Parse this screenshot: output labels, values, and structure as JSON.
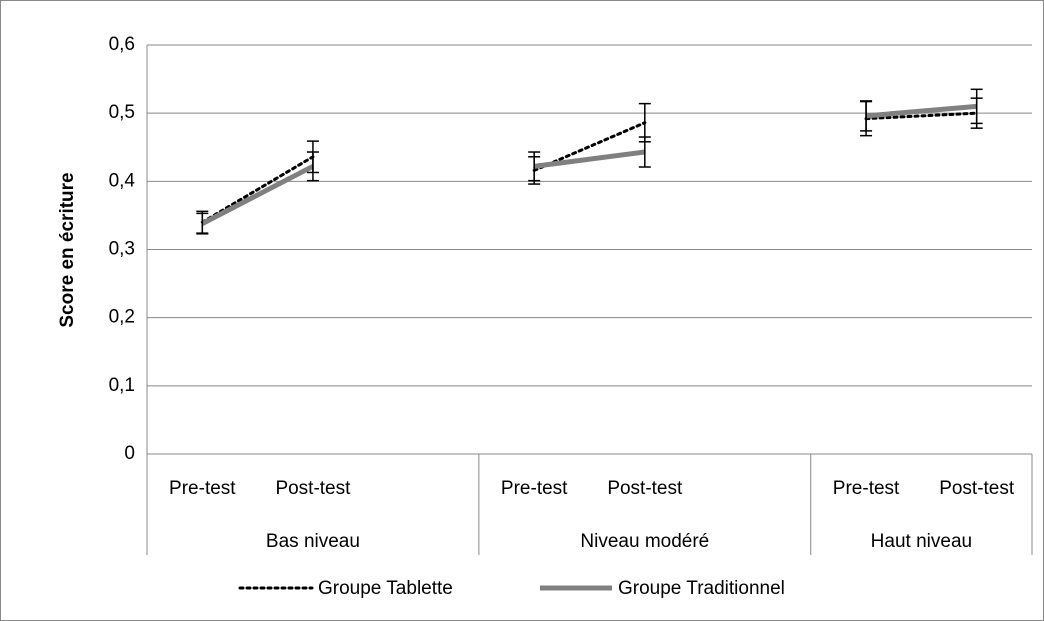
{
  "chart_data": {
    "type": "line",
    "y_label": "Score en écriture",
    "groups": [
      {
        "name": "Bas niveau",
        "categories": [
          "Pre-test",
          "Post-test",
          null
        ]
      },
      {
        "name": "Niveau modéré",
        "categories": [
          "Pre-test",
          "Post-test",
          null
        ]
      },
      {
        "name": "Haut niveau",
        "categories": [
          "Pre-test",
          "Post-test"
        ]
      }
    ],
    "series": [
      {
        "name": "Groupe Tablette",
        "color": "#000000",
        "style": "dotted",
        "values": [
          0.34,
          0.436,
          null,
          0.416,
          0.486,
          null,
          0.492,
          0.5
        ],
        "errors": [
          0.016,
          0.023,
          null,
          0.02,
          0.028,
          null,
          0.025,
          0.022
        ]
      },
      {
        "name": "Groupe Traditionnel",
        "color": "#808080",
        "style": "solid",
        "values": [
          0.338,
          0.422,
          null,
          0.422,
          0.443,
          null,
          0.496,
          0.51
        ],
        "errors": [
          0.015,
          0.021,
          null,
          0.021,
          0.022,
          null,
          0.022,
          0.025
        ]
      }
    ],
    "ylim": [
      0,
      0.6
    ],
    "yticks": [
      {
        "value": 0,
        "label": "0"
      },
      {
        "value": 0.1,
        "label": "0,1"
      },
      {
        "value": 0.2,
        "label": "0,2"
      },
      {
        "value": 0.3,
        "label": "0,3"
      },
      {
        "value": 0.4,
        "label": "0,4"
      },
      {
        "value": 0.5,
        "label": "0,5"
      },
      {
        "value": 0.6,
        "label": "0,6"
      }
    ],
    "grid": true,
    "legend": "bottom"
  }
}
